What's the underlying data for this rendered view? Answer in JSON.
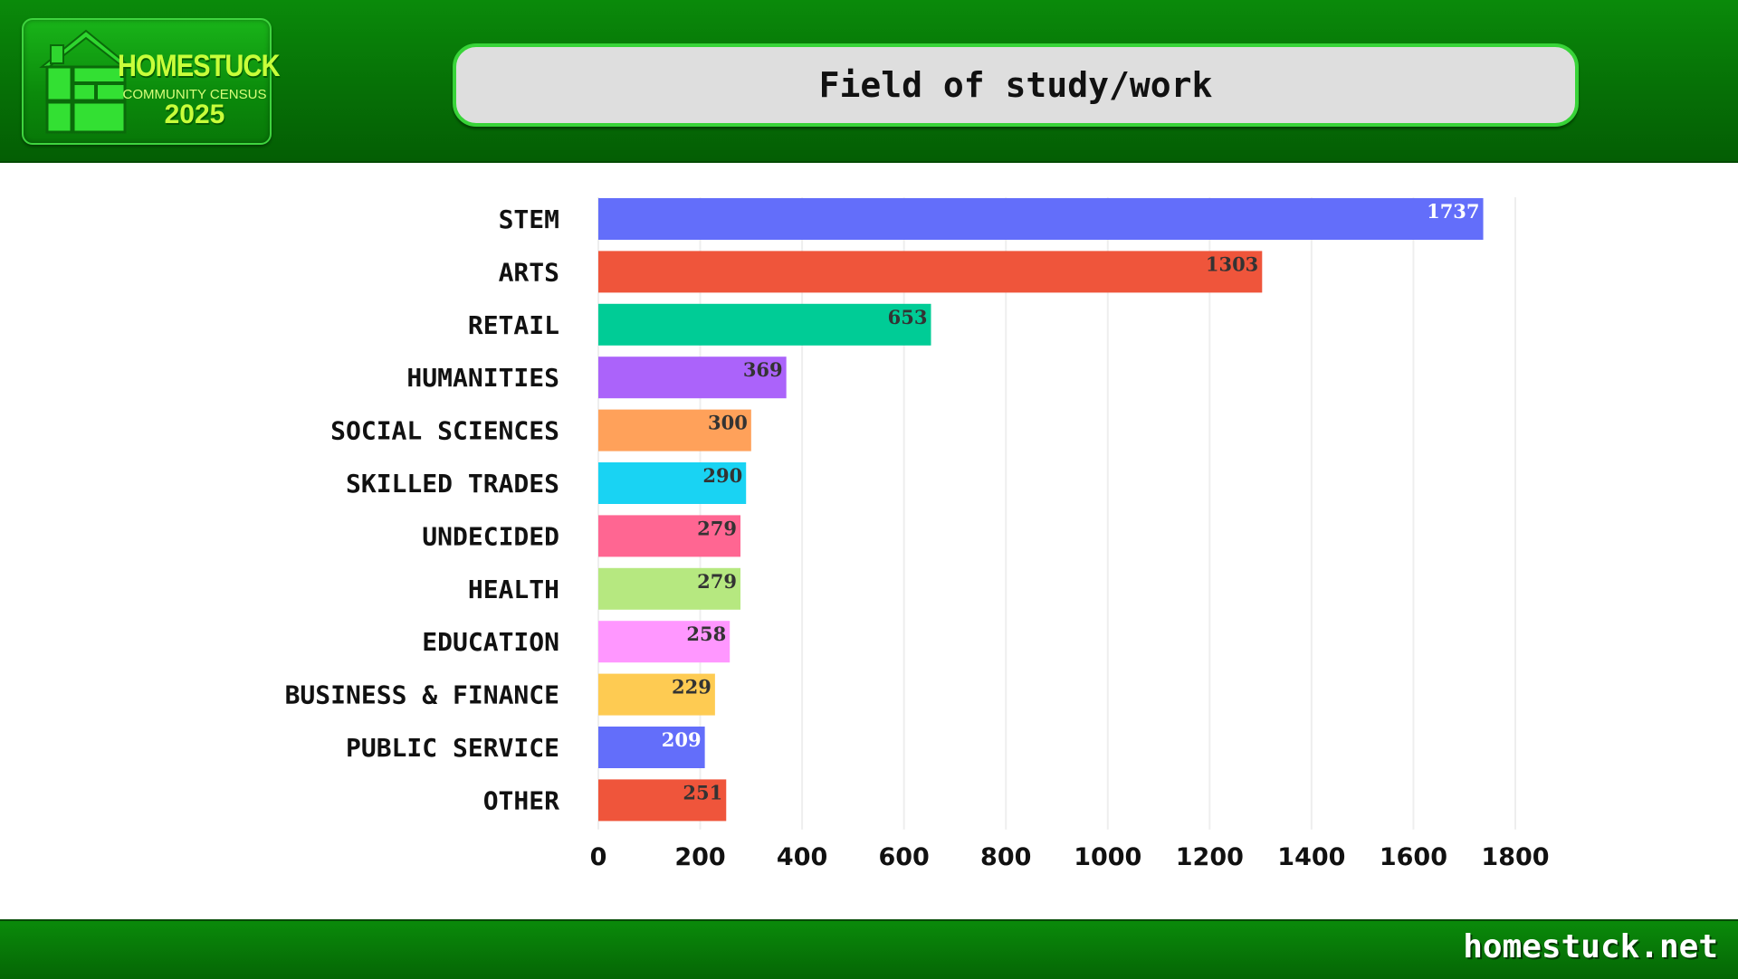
{
  "header": {
    "logo": {
      "title": "HOMESTUCK",
      "subtitle": "COMMUNITY CENSUS",
      "year": "2025",
      "icon": "house-logo-icon"
    },
    "title": "Field of study/work"
  },
  "footer": {
    "site": "homestuck.net"
  },
  "colors": {
    "header_green": "#067006",
    "pill_border": "#38d438",
    "grid": "#eeeeee"
  },
  "chart_data": {
    "type": "bar",
    "orientation": "horizontal",
    "title": "Field of study/work",
    "xlabel": "",
    "ylabel": "",
    "xlim": [
      0,
      1800
    ],
    "xticks": [
      0,
      200,
      400,
      600,
      800,
      1000,
      1200,
      1400,
      1600,
      1800
    ],
    "grid": true,
    "categories": [
      "STEM",
      "ARTS",
      "RETAIL",
      "HUMANITIES",
      "SOCIAL SCIENCES",
      "SKILLED TRADES",
      "UNDECIDED",
      "HEALTH",
      "EDUCATION",
      "BUSINESS & FINANCE",
      "PUBLIC SERVICE",
      "OTHER"
    ],
    "values": [
      1737,
      1303,
      653,
      369,
      300,
      290,
      279,
      279,
      258,
      229,
      209,
      251
    ],
    "bar_colors": [
      "#636efa",
      "#ef553b",
      "#00cc96",
      "#ab63fa",
      "#ffa15a",
      "#19d3f3",
      "#ff6692",
      "#b6e880",
      "#ff97ff",
      "#fecb52",
      "#636efa",
      "#ef553b"
    ],
    "label_colors": [
      "#ffffff",
      "#333333",
      "#333333",
      "#333333",
      "#333333",
      "#333333",
      "#333333",
      "#333333",
      "#333333",
      "#333333",
      "#ffffff",
      "#333333"
    ]
  }
}
